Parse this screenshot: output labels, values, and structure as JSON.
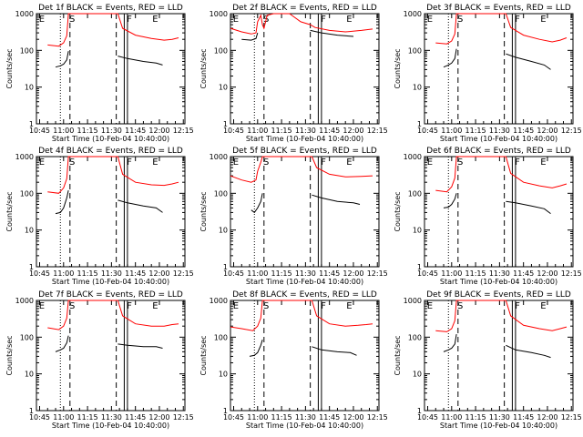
{
  "chart_data": {
    "type": "line",
    "yscale": "log",
    "ylim": [
      1,
      1000
    ],
    "xlim": [
      "10:43",
      "12:16"
    ],
    "ylabel": "Counts/sec",
    "xlabel": "Start Time (10-Feb-04 10:40:00)",
    "x_ticks": [
      "10:45",
      "11:00",
      "11:15",
      "11:30",
      "11:45",
      "12:00",
      "12:15"
    ],
    "y_ticks": [
      "1",
      "10",
      "100",
      "1000"
    ],
    "markers": [
      {
        "label": "E",
        "time": "10:44"
      },
      {
        "label": "S",
        "time": "11:03"
      },
      {
        "label": "F",
        "time": "11:39"
      },
      {
        "label": "E",
        "time": "11:55"
      }
    ],
    "vlines": [
      {
        "time": "10:58",
        "style": "dotted"
      },
      {
        "time": "11:04",
        "style": "dashed"
      },
      {
        "time": "11:33",
        "style": "dashed"
      },
      {
        "time": "11:38",
        "style": "solid"
      },
      {
        "time": "11:40",
        "style": "solid"
      }
    ],
    "series_colors": {
      "events": "#000000",
      "lld": "#ff0000"
    },
    "panels": [
      {
        "title": "Det 1f BLACK = Events, RED = LLD",
        "lld": [
          [
            "10:50",
            140
          ],
          [
            "10:57",
            130
          ],
          [
            "11:00",
            160
          ],
          [
            "11:02",
            250
          ],
          [
            "11:03",
            1000
          ],
          [
            "11:34",
            1000
          ],
          [
            "11:37",
            400
          ],
          [
            "11:45",
            260
          ],
          [
            "11:55",
            210
          ],
          [
            "12:03",
            190
          ],
          [
            "12:08",
            200
          ],
          [
            "12:12",
            220
          ]
        ],
        "events": [
          [
            "10:55",
            35
          ],
          [
            "10:58",
            38
          ],
          [
            "11:00",
            42
          ],
          [
            "11:02",
            55
          ],
          [
            "11:03",
            95
          ],
          [
            "11:34",
            70
          ],
          [
            "11:40",
            60
          ],
          [
            "11:50",
            50
          ],
          [
            "11:58",
            45
          ],
          [
            "12:02",
            40
          ]
        ]
      },
      {
        "title": "Det 2f BLACK = Events, RED = LLD",
        "lld": [
          [
            "10:43",
            400
          ],
          [
            "10:50",
            320
          ],
          [
            "10:56",
            280
          ],
          [
            "10:59",
            300
          ],
          [
            "11:00",
            600
          ],
          [
            "11:02",
            900
          ],
          [
            "11:03",
            500
          ],
          [
            "11:04",
            400
          ],
          [
            "11:06",
            900
          ],
          [
            "11:10",
            1000
          ],
          [
            "11:20",
            1000
          ],
          [
            "11:27",
            600
          ],
          [
            "11:33",
            500
          ],
          [
            "11:36",
            420
          ],
          [
            "11:45",
            350
          ],
          [
            "11:55",
            320
          ],
          [
            "12:05",
            350
          ],
          [
            "12:12",
            380
          ]
        ],
        "events": [
          [
            "10:50",
            200
          ],
          [
            "10:56",
            190
          ],
          [
            "10:59",
            210
          ],
          [
            "11:00",
            300
          ],
          [
            "11:33",
            350
          ],
          [
            "11:40",
            300
          ],
          [
            "11:50",
            260
          ],
          [
            "12:00",
            240
          ]
        ]
      },
      {
        "title": "Det 3f BLACK = Events, RED = LLD",
        "lld": [
          [
            "10:50",
            160
          ],
          [
            "10:57",
            150
          ],
          [
            "11:00",
            180
          ],
          [
            "11:02",
            280
          ],
          [
            "11:03",
            1000
          ],
          [
            "11:34",
            1000
          ],
          [
            "11:37",
            420
          ],
          [
            "11:45",
            260
          ],
          [
            "11:55",
            200
          ],
          [
            "12:03",
            170
          ],
          [
            "12:08",
            190
          ],
          [
            "12:12",
            220
          ]
        ],
        "events": [
          [
            "10:55",
            35
          ],
          [
            "10:58",
            40
          ],
          [
            "11:00",
            45
          ],
          [
            "11:02",
            60
          ],
          [
            "11:03",
            110
          ],
          [
            "11:34",
            80
          ],
          [
            "11:40",
            65
          ],
          [
            "11:50",
            50
          ],
          [
            "11:58",
            40
          ],
          [
            "12:02",
            30
          ]
        ]
      },
      {
        "title": "Det 4f BLACK = Events, RED = LLD",
        "lld": [
          [
            "10:50",
            110
          ],
          [
            "10:57",
            100
          ],
          [
            "11:00",
            140
          ],
          [
            "11:02",
            250
          ],
          [
            "11:03",
            1000
          ],
          [
            "11:34",
            1000
          ],
          [
            "11:37",
            330
          ],
          [
            "11:45",
            200
          ],
          [
            "11:55",
            170
          ],
          [
            "12:03",
            165
          ],
          [
            "12:08",
            180
          ],
          [
            "12:12",
            200
          ]
        ],
        "events": [
          [
            "10:55",
            28
          ],
          [
            "10:58",
            30
          ],
          [
            "11:00",
            40
          ],
          [
            "11:02",
            75
          ],
          [
            "11:03",
            120
          ],
          [
            "11:34",
            65
          ],
          [
            "11:40",
            55
          ],
          [
            "11:50",
            45
          ],
          [
            "11:58",
            40
          ],
          [
            "12:02",
            30
          ]
        ]
      },
      {
        "title": "Det 5f BLACK = Events, RED = LLD",
        "lld": [
          [
            "10:43",
            300
          ],
          [
            "10:50",
            230
          ],
          [
            "10:56",
            200
          ],
          [
            "10:59",
            230
          ],
          [
            "11:00",
            400
          ],
          [
            "11:02",
            700
          ],
          [
            "11:03",
            1000
          ],
          [
            "11:34",
            1000
          ],
          [
            "11:37",
            500
          ],
          [
            "11:45",
            330
          ],
          [
            "11:55",
            280
          ],
          [
            "12:05",
            290
          ],
          [
            "12:12",
            300
          ]
        ],
        "events": [
          [
            "10:56",
            35
          ],
          [
            "10:58",
            30
          ],
          [
            "11:00",
            40
          ],
          [
            "11:02",
            60
          ],
          [
            "11:03",
            100
          ],
          [
            "11:34",
            90
          ],
          [
            "11:40",
            75
          ],
          [
            "11:50",
            60
          ],
          [
            "12:00",
            55
          ],
          [
            "12:04",
            50
          ]
        ]
      },
      {
        "title": "Det 6f BLACK = Events, RED = LLD",
        "lld": [
          [
            "10:50",
            120
          ],
          [
            "10:57",
            110
          ],
          [
            "11:00",
            150
          ],
          [
            "11:02",
            260
          ],
          [
            "11:03",
            1000
          ],
          [
            "11:34",
            1000
          ],
          [
            "11:37",
            350
          ],
          [
            "11:45",
            200
          ],
          [
            "11:55",
            160
          ],
          [
            "12:03",
            140
          ],
          [
            "12:08",
            160
          ],
          [
            "12:12",
            180
          ]
        ],
        "events": [
          [
            "10:55",
            40
          ],
          [
            "10:58",
            42
          ],
          [
            "11:00",
            50
          ],
          [
            "11:02",
            70
          ],
          [
            "11:03",
            100
          ],
          [
            "11:34",
            60
          ],
          [
            "11:40",
            55
          ],
          [
            "11:50",
            45
          ],
          [
            "11:58",
            38
          ],
          [
            "12:02",
            28
          ]
        ]
      },
      {
        "title": "Det 7f BLACK = Events, RED = LLD",
        "lld": [
          [
            "10:50",
            180
          ],
          [
            "10:57",
            160
          ],
          [
            "11:00",
            200
          ],
          [
            "11:02",
            330
          ],
          [
            "11:03",
            1000
          ],
          [
            "11:34",
            1000
          ],
          [
            "11:37",
            380
          ],
          [
            "11:45",
            230
          ],
          [
            "11:55",
            200
          ],
          [
            "12:03",
            200
          ],
          [
            "12:08",
            220
          ],
          [
            "12:12",
            230
          ]
        ],
        "events": [
          [
            "10:55",
            40
          ],
          [
            "10:58",
            45
          ],
          [
            "11:00",
            50
          ],
          [
            "11:02",
            70
          ],
          [
            "11:03",
            110
          ],
          [
            "11:34",
            65
          ],
          [
            "11:40",
            60
          ],
          [
            "11:50",
            55
          ],
          [
            "11:58",
            55
          ],
          [
            "12:02",
            50
          ]
        ]
      },
      {
        "title": "Det 8f BLACK = Events, RED = LLD",
        "lld": [
          [
            "10:43",
            190
          ],
          [
            "10:50",
            170
          ],
          [
            "10:57",
            150
          ],
          [
            "11:00",
            200
          ],
          [
            "11:02",
            330
          ],
          [
            "11:03",
            1000
          ],
          [
            "11:34",
            1000
          ],
          [
            "11:37",
            380
          ],
          [
            "11:45",
            230
          ],
          [
            "11:55",
            200
          ],
          [
            "12:03",
            210
          ],
          [
            "12:08",
            220
          ],
          [
            "12:12",
            230
          ]
        ],
        "events": [
          [
            "10:55",
            30
          ],
          [
            "10:58",
            32
          ],
          [
            "11:00",
            38
          ],
          [
            "11:02",
            60
          ],
          [
            "11:03",
            85
          ],
          [
            "11:34",
            55
          ],
          [
            "11:40",
            45
          ],
          [
            "11:50",
            40
          ],
          [
            "11:58",
            38
          ],
          [
            "12:02",
            32
          ]
        ]
      },
      {
        "title": "Det 9f BLACK = Events, RED = LLD",
        "lld": [
          [
            "10:50",
            150
          ],
          [
            "10:57",
            140
          ],
          [
            "11:00",
            170
          ],
          [
            "11:02",
            280
          ],
          [
            "11:03",
            1000
          ],
          [
            "11:34",
            1000
          ],
          [
            "11:37",
            380
          ],
          [
            "11:45",
            210
          ],
          [
            "11:55",
            170
          ],
          [
            "12:03",
            150
          ],
          [
            "12:08",
            170
          ],
          [
            "12:12",
            190
          ]
        ],
        "events": [
          [
            "10:55",
            40
          ],
          [
            "10:58",
            45
          ],
          [
            "11:00",
            50
          ],
          [
            "11:02",
            65
          ],
          [
            "11:03",
            120
          ],
          [
            "11:34",
            60
          ],
          [
            "11:40",
            45
          ],
          [
            "11:50",
            38
          ],
          [
            "11:58",
            32
          ],
          [
            "12:02",
            28
          ]
        ]
      }
    ]
  }
}
